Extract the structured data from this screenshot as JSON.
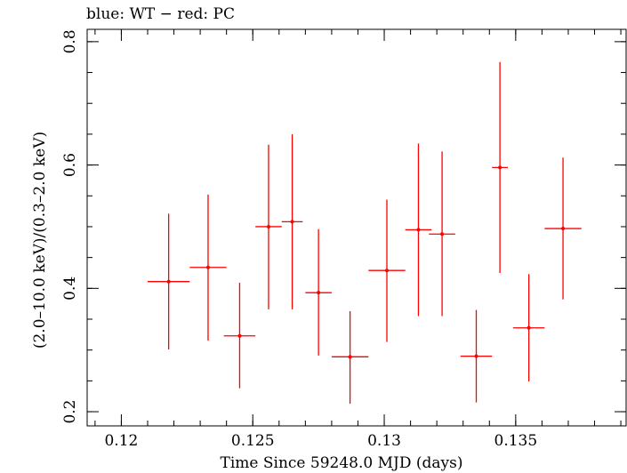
{
  "chart_data": {
    "type": "scatter",
    "title": "blue: WT − red: PC",
    "xlabel": "Time Since 59248.0 MJD (days)",
    "ylabel": "(2.0–10.0 keV)/(0.3–2.0 keV)",
    "xlim": [
      0.1187,
      0.1392
    ],
    "ylim": [
      0.177,
      0.82
    ],
    "x_ticks": [
      {
        "value": 0.12,
        "label": "0.12"
      },
      {
        "value": 0.125,
        "label": "0.125"
      },
      {
        "value": 0.13,
        "label": "0.13"
      },
      {
        "value": 0.135,
        "label": "0.135"
      }
    ],
    "x_minor_step": 0.001,
    "y_ticks": [
      {
        "value": 0.2,
        "label": "0.2"
      },
      {
        "value": 0.4,
        "label": "0.4"
      },
      {
        "value": 0.6,
        "label": "0.6"
      },
      {
        "value": 0.8,
        "label": "0.8"
      }
    ],
    "y_minor_step": 0.05,
    "grid": false,
    "series": [
      {
        "color": "#ff0000",
        "points": [
          {
            "x": 0.1218,
            "xerr": 0.0008,
            "y": 0.411,
            "ylo": 0.301,
            "yhi": 0.521
          },
          {
            "x": 0.1233,
            "xerr": 0.0007,
            "y": 0.434,
            "ylo": 0.315,
            "yhi": 0.552
          },
          {
            "x": 0.1245,
            "xerr": 0.0006,
            "y": 0.323,
            "ylo": 0.238,
            "yhi": 0.409
          },
          {
            "x": 0.1256,
            "xerr": 0.0005,
            "y": 0.5,
            "ylo": 0.366,
            "yhi": 0.633
          },
          {
            "x": 0.1265,
            "xerr": 0.0004,
            "y": 0.508,
            "ylo": 0.366,
            "yhi": 0.65
          },
          {
            "x": 0.1275,
            "xerr": 0.0005,
            "y": 0.393,
            "ylo": 0.291,
            "yhi": 0.496
          },
          {
            "x": 0.1287,
            "xerr": 0.0007,
            "y": 0.289,
            "ylo": 0.213,
            "yhi": 0.363
          },
          {
            "x": 0.1301,
            "xerr": 0.0007,
            "y": 0.429,
            "ylo": 0.313,
            "yhi": 0.544
          },
          {
            "x": 0.1313,
            "xerr": 0.0005,
            "y": 0.495,
            "ylo": 0.355,
            "yhi": 0.635
          },
          {
            "x": 0.1322,
            "xerr": 0.0005,
            "y": 0.488,
            "ylo": 0.355,
            "yhi": 0.622
          },
          {
            "x": 0.1335,
            "xerr": 0.0006,
            "y": 0.29,
            "ylo": 0.215,
            "yhi": 0.365
          },
          {
            "x": 0.1344,
            "xerr": 0.0003,
            "y": 0.596,
            "ylo": 0.425,
            "yhi": 0.767
          },
          {
            "x": 0.1355,
            "xerr": 0.0006,
            "y": 0.336,
            "ylo": 0.249,
            "yhi": 0.423
          },
          {
            "x": 0.1368,
            "xerr": 0.0007,
            "y": 0.497,
            "ylo": 0.382,
            "yhi": 0.612
          }
        ]
      }
    ]
  }
}
